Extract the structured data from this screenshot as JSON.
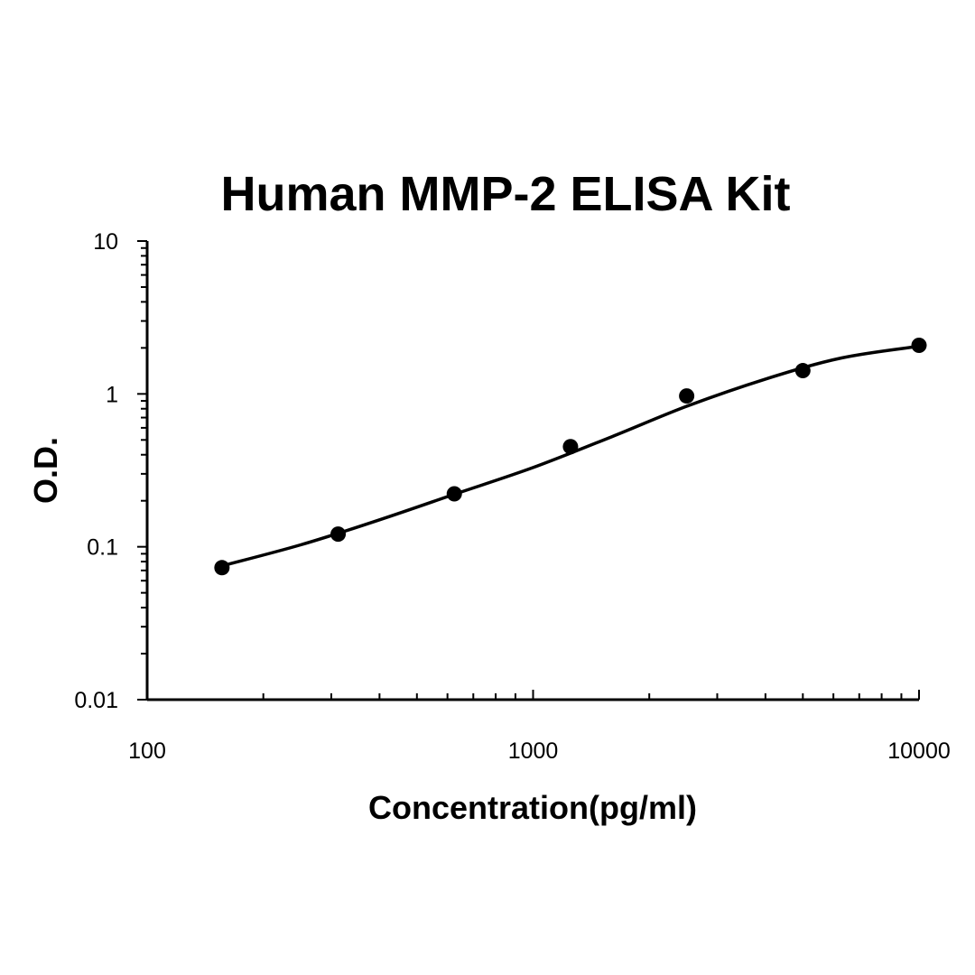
{
  "chart_data": {
    "type": "scatter",
    "title": "Human MMP-2 ELISA Kit",
    "xlabel": "Concentration(pg/ml)",
    "ylabel": "O.D.",
    "x_scale": "log",
    "y_scale": "log",
    "xlim": [
      100,
      10000
    ],
    "ylim": [
      0.01,
      10
    ],
    "x_tick_labels": [
      "100",
      "1000",
      "10000"
    ],
    "y_tick_labels": [
      "0.01",
      "0.1",
      "1",
      "10"
    ],
    "grid": false,
    "points": [
      {
        "x": 156.25,
        "y": 0.073
      },
      {
        "x": 312.5,
        "y": 0.121
      },
      {
        "x": 625,
        "y": 0.222
      },
      {
        "x": 1250,
        "y": 0.452
      },
      {
        "x": 2500,
        "y": 0.97
      },
      {
        "x": 5000,
        "y": 1.42
      },
      {
        "x": 10000,
        "y": 2.08
      }
    ],
    "fit_curve": {
      "x": [
        156.25,
        250,
        400,
        630,
        1000,
        1600,
        2500,
        4000,
        6300,
        10000
      ],
      "y": [
        0.075,
        0.103,
        0.15,
        0.222,
        0.33,
        0.525,
        0.83,
        1.25,
        1.72,
        2.05
      ]
    }
  }
}
